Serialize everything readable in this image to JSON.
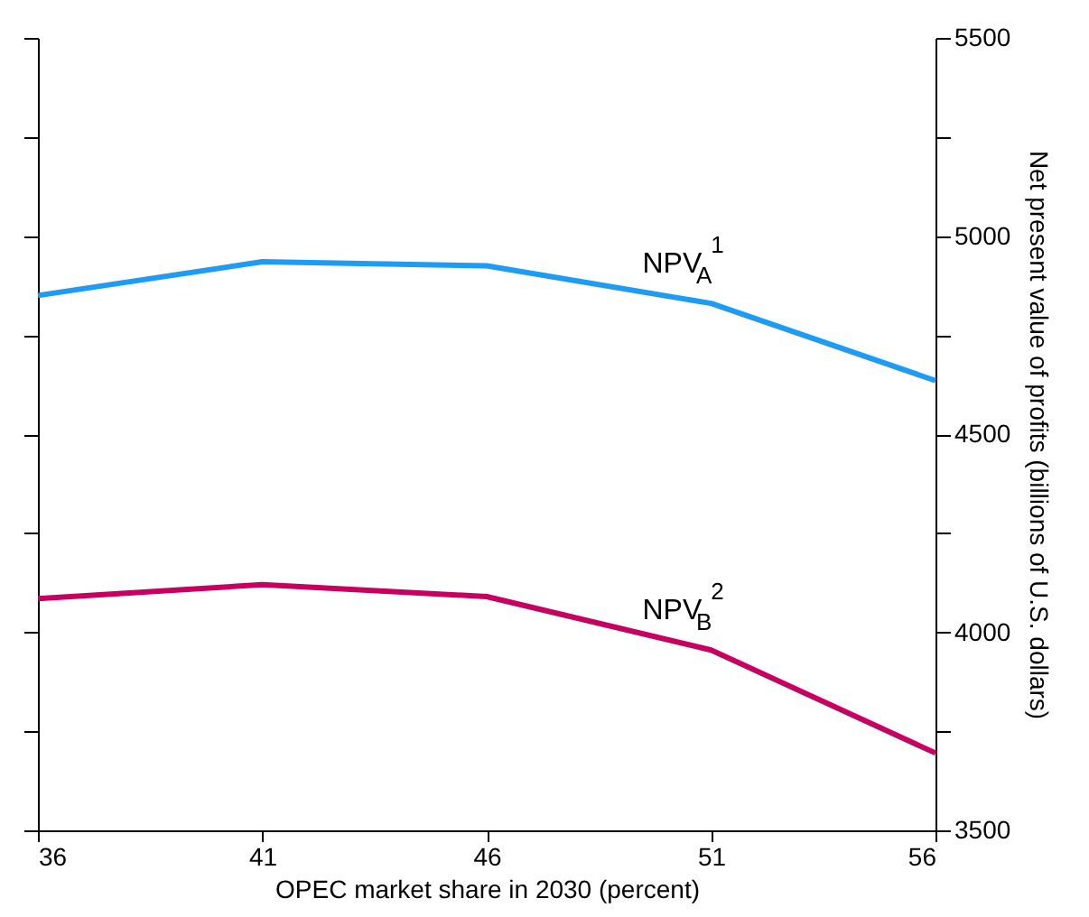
{
  "chart_data": {
    "type": "line",
    "xlabel": "OPEC market share in 2030 (percent)",
    "ylabel": "Net present value of profits (billions of U.S. dollars)",
    "x": [
      36,
      41,
      46,
      51,
      56
    ],
    "xlim": [
      36,
      56
    ],
    "xticks": [
      36,
      41,
      46,
      51,
      56
    ],
    "ylim": [
      3500,
      5500
    ],
    "yticks": [
      3500,
      {
        "value": 3750,
        "label": null
      },
      4000,
      {
        "value": 4250,
        "label": null
      },
      4500,
      {
        "value": 4750,
        "label": null
      },
      5000,
      {
        "value": 5250,
        "label": null
      },
      5500
    ],
    "series": [
      {
        "name": "NPV$_{A}$$^{1}$",
        "color": "#1e9bf5",
        "values": [
          4850,
          4935,
          4925,
          4830,
          4635
        ]
      },
      {
        "name": "NPV$_{B}$$^{2}$",
        "color": "#c8005f",
        "values": [
          4085,
          4120,
          4090,
          3955,
          3695
        ]
      }
    ],
    "marker": "none",
    "line_style": "solid"
  }
}
